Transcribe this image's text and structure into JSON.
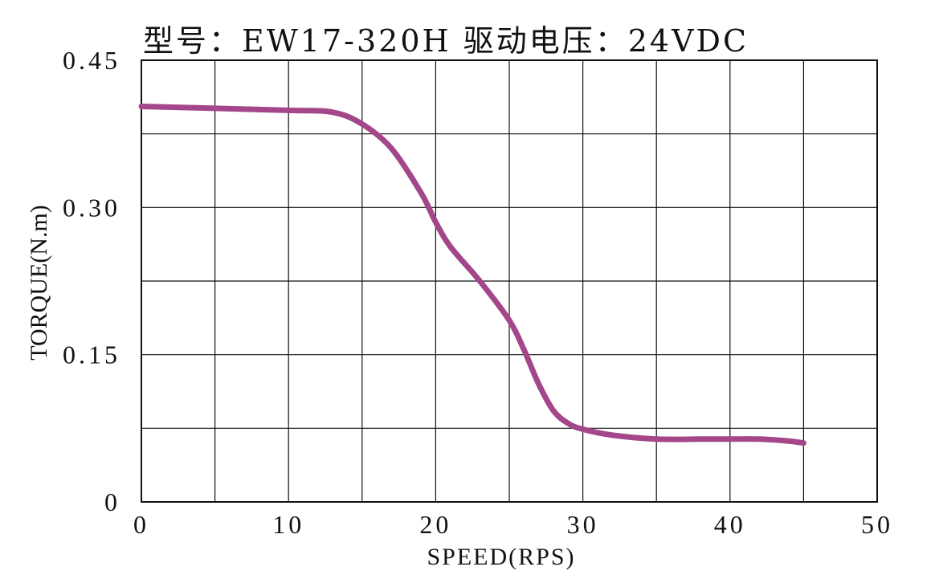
{
  "chart_data": {
    "type": "line",
    "title": "型号：EW17-320H   驱动电压：24VDC",
    "xlabel": "SPEED(RPS)",
    "ylabel": "TORQUE(N.m)",
    "xlim": [
      0,
      50
    ],
    "ylim": [
      0,
      0.45
    ],
    "x_ticks": [
      0,
      10,
      20,
      30,
      40,
      50
    ],
    "x_tick_labels": [
      "0",
      "10",
      "20",
      "30",
      "40",
      "50"
    ],
    "y_ticks": [
      0,
      0.15,
      0.3,
      0.45
    ],
    "y_tick_labels": [
      "0",
      "0.15",
      "0.30",
      "0.45"
    ],
    "x_grid_step": 5,
    "y_grid_step": 0.075,
    "grid": true,
    "series_color": "#a3478a",
    "series": [
      {
        "x": [
          0,
          5,
          10,
          13,
          15,
          17,
          19,
          20,
          21,
          23,
          25,
          26,
          27,
          28,
          29,
          30,
          32,
          35,
          38,
          40,
          42,
          44,
          45
        ],
        "y": [
          0.403,
          0.401,
          0.399,
          0.397,
          0.385,
          0.36,
          0.315,
          0.285,
          0.26,
          0.225,
          0.185,
          0.155,
          0.12,
          0.093,
          0.08,
          0.074,
          0.068,
          0.064,
          0.064,
          0.064,
          0.064,
          0.062,
          0.06
        ]
      }
    ]
  }
}
